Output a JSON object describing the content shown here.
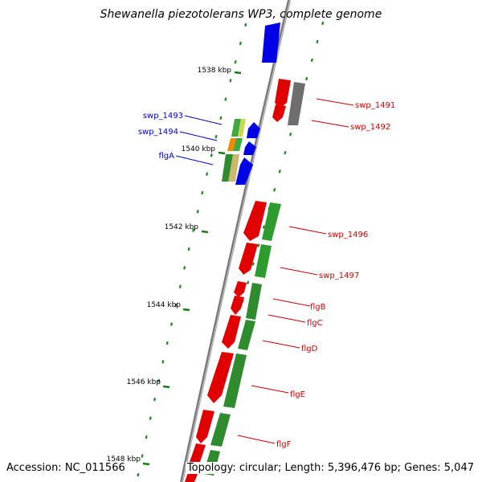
{
  "title": "Shewanella piezotolerans WP3, complete genome",
  "footer": {
    "accession": "Accession: NC_011566",
    "topology": "Topology: circular; Length: 5,396,476 bp; Genes: 5,047"
  },
  "ticks": [
    "1538 kbp",
    "1540 kbp",
    "1542 kbp",
    "1544 kbp",
    "1546 kbp",
    "1548 kbp"
  ],
  "gene_labels_right": [
    "swp_1491",
    "swp_1492",
    "swp_1496",
    "swp_1497",
    "flgB",
    "flgC",
    "flgD",
    "flgE",
    "flgF"
  ],
  "gene_labels_left": [
    "swp_1493",
    "swp_1494",
    "flgA"
  ],
  "colors": {
    "backbone": "#7f7f7f",
    "forward_cds": "#e00000",
    "forward_cds_gc": "#2e8b2e",
    "reverse_cds": "#0000e6",
    "label_forward": "#cc0000",
    "label_reverse": "#0000cc",
    "tick": "#1a7a1a",
    "dots": "#2a8a2a"
  }
}
